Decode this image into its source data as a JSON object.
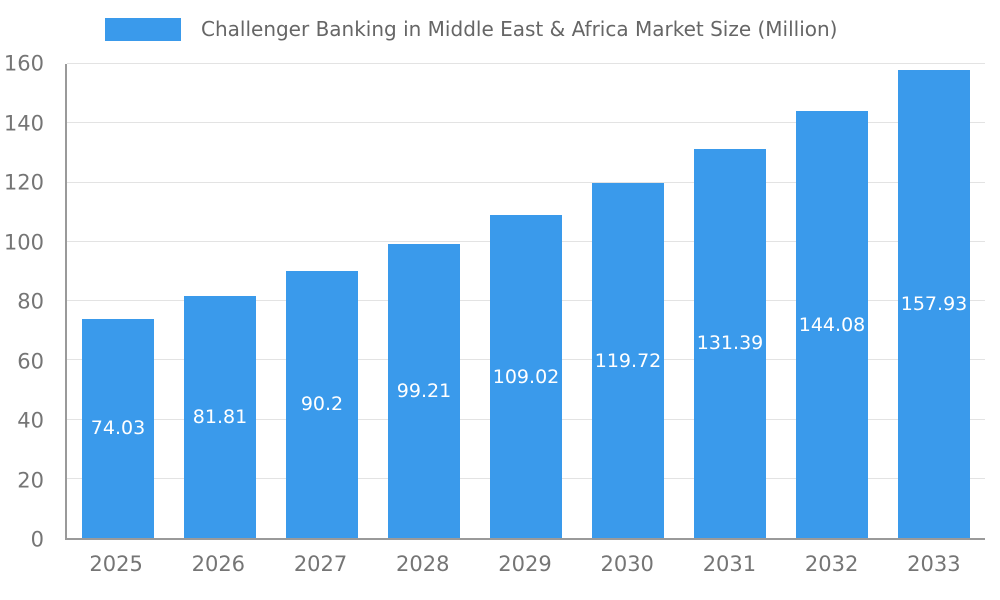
{
  "chart_data": {
    "type": "bar",
    "title": "Challenger Banking in Middle East & Africa Market Size (Million)",
    "categories": [
      "2025",
      "2026",
      "2027",
      "2028",
      "2029",
      "2030",
      "2031",
      "2032",
      "2033"
    ],
    "values": [
      74.03,
      81.81,
      90.2,
      99.21,
      109.02,
      119.72,
      131.39,
      144.08,
      157.93
    ],
    "value_labels": [
      "74.03",
      "81.81",
      "90.2",
      "99.21",
      "109.02",
      "119.72",
      "131.39",
      "144.08",
      "157.93"
    ],
    "xlabel": "",
    "ylabel": "",
    "ylim": [
      0,
      160
    ],
    "ytick_step": 20,
    "grid": "horizontal",
    "legend_position": "top",
    "colors": {
      "bar": "#3A9AEB",
      "bar_value_label": "#ffffff",
      "axis_text": "#757575",
      "title_text": "#666666",
      "gridline": "#e3e3e3",
      "axis_line": "#9a9a9a",
      "background": "#ffffff"
    }
  }
}
